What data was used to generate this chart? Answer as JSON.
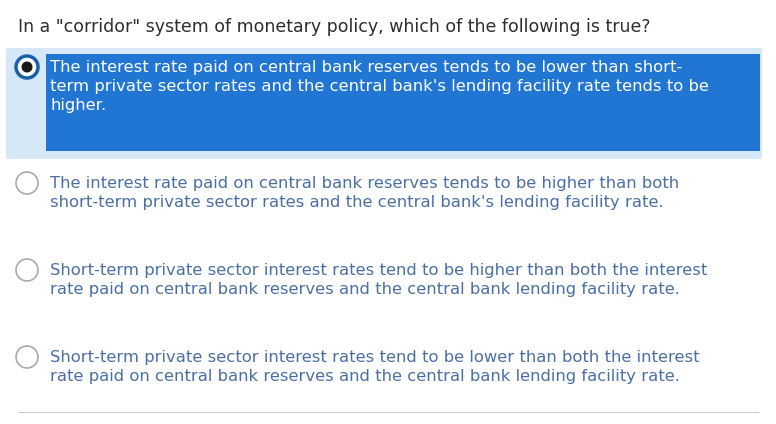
{
  "background_color": "#ffffff",
  "question": "In a \"corridor\" system of monetary policy, which of the following is true?",
  "question_color": "#2d2d2d",
  "question_fontsize": 12.5,
  "options": [
    {
      "line1": "The interest rate paid on central bank reserves tends to be lower than short-",
      "line2": "term private sector rates and the central bank's lending facility rate tends to be",
      "line3": "higher.",
      "lines": 3,
      "selected": true,
      "highlight_bg": "#d6e8f7",
      "text_highlight_bg": "#2176d4",
      "text_color": "#ffffff",
      "unsel_text_color": "#4a6fa5"
    },
    {
      "line1": "The interest rate paid on central bank reserves tends to be higher than both",
      "line2": "short-term private sector rates and the central bank's lending facility rate.",
      "line3": "",
      "lines": 2,
      "selected": false,
      "highlight_bg": "#d6e8f7",
      "text_highlight_bg": "#2176d4",
      "text_color": "#ffffff",
      "unsel_text_color": "#4a6fa5"
    },
    {
      "line1": "Short-term private sector interest rates tend to be higher than both the interest",
      "line2": "rate paid on central bank reserves and the central bank lending facility rate.",
      "line3": "",
      "lines": 2,
      "selected": false,
      "highlight_bg": "#d6e8f7",
      "text_highlight_bg": "#2176d4",
      "text_color": "#ffffff",
      "unsel_text_color": "#4a6fa5"
    },
    {
      "line1": "Short-term private sector interest rates tend to be lower than both the interest",
      "line2": "rate paid on central bank reserves and the central bank lending facility rate.",
      "line3": "",
      "lines": 2,
      "selected": false,
      "highlight_bg": "#d6e8f7",
      "text_highlight_bg": "#2176d4",
      "text_color": "#ffffff",
      "unsel_text_color": "#4a6fa5"
    }
  ],
  "option_fontsize": 11.8,
  "radio_selected_outer": "#1a5fa8",
  "radio_selected_inner": "#1a1a1a",
  "radio_unsel_edge": "#aaaaaa",
  "radio_unsel_fill": "#ffffff"
}
